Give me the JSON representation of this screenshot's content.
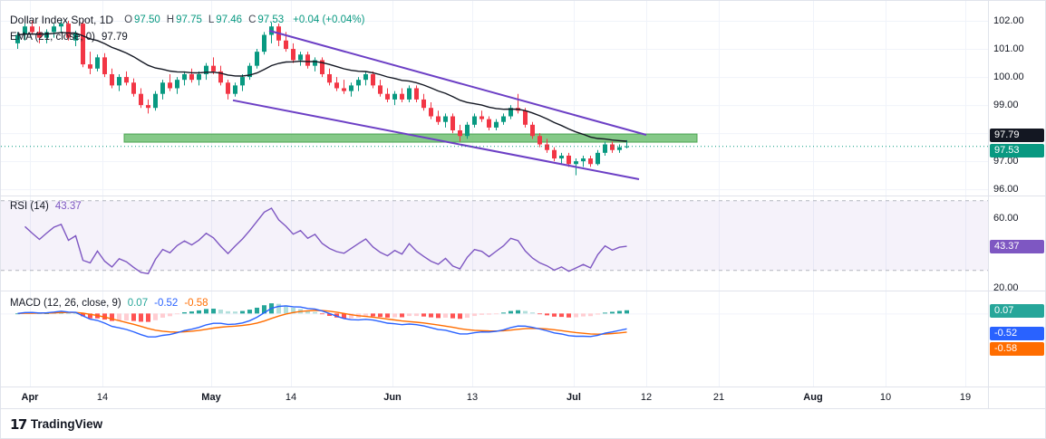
{
  "header": {
    "symbol_title": "Dollar Index Spot, 1D",
    "ohlc": {
      "o_label": "O",
      "o_value": "97.50",
      "h_label": "H",
      "h_value": "97.75",
      "l_label": "L",
      "l_value": "97.46",
      "c_label": "C",
      "c_value": "97.53",
      "change": "+0.04 (+0.04%)"
    },
    "ema": {
      "label": "EMA (21, close, 0)",
      "value": "97.79"
    }
  },
  "rsi_legend": {
    "label": "RSI (14)",
    "value": "43.37"
  },
  "macd_legend": {
    "label": "MACD (12, 26, close, 9)",
    "hist": "0.07",
    "macd": "-0.52",
    "signal": "-0.58"
  },
  "footer": {
    "mark": "17",
    "brand": "TradingView"
  },
  "colors": {
    "up": "#089981",
    "down": "#F23645",
    "ema": "#131722",
    "trendline": "#6C3FC5",
    "zone_fill": "#66BB6A",
    "zone_border": "#43A047",
    "rsi": "#7E57C2",
    "rsi_band_fill": "rgba(126,87,194,0.08)",
    "band_line": "#B2B5BE",
    "macd_line": "#2962FF",
    "macd_signal": "#FF6D00",
    "hist_up": "#26A69A",
    "hist_up_faded": "#B2DFDB",
    "hist_down": "#FF5252",
    "hist_down_faded": "#FFCDD2",
    "grid": "#F0F3FA",
    "border": "#E0E3EB",
    "axis_text": "#131722"
  },
  "chart_data": {
    "type": "candlestick",
    "title": "Dollar Index Spot",
    "interval": "1D",
    "price_axis_labels": [
      102,
      101,
      100,
      99,
      98,
      97,
      96
    ],
    "main": {
      "ylim": [
        95.78,
        102.71
      ],
      "ema_period": 21,
      "candles": [
        [
          101.2,
          101.6,
          101.0,
          101.5
        ],
        [
          101.5,
          101.9,
          101.3,
          101.8
        ],
        [
          101.8,
          102.0,
          101.5,
          101.6
        ],
        [
          101.6,
          101.8,
          101.2,
          101.4
        ],
        [
          101.4,
          101.7,
          101.2,
          101.6
        ],
        [
          101.6,
          101.9,
          101.4,
          101.8
        ],
        [
          101.8,
          102.05,
          101.6,
          101.9
        ],
        [
          101.9,
          102.0,
          101.3,
          101.4
        ],
        [
          101.3,
          101.65,
          101.1,
          101.55
        ],
        [
          101.9,
          102.0,
          100.35,
          100.45
        ],
        [
          100.45,
          100.9,
          100.1,
          100.3
        ],
        [
          100.3,
          100.8,
          100.2,
          100.7
        ],
        [
          100.7,
          100.85,
          100.0,
          100.1
        ],
        [
          100.1,
          100.3,
          99.6,
          99.7
        ],
        [
          99.7,
          100.1,
          99.5,
          100.0
        ],
        [
          100.0,
          100.2,
          99.7,
          99.8
        ],
        [
          99.8,
          99.95,
          99.3,
          99.4
        ],
        [
          99.4,
          99.6,
          98.9,
          99.0
        ],
        [
          99.0,
          99.2,
          98.7,
          98.9
        ],
        [
          98.9,
          99.5,
          98.8,
          99.4
        ],
        [
          99.4,
          99.9,
          99.2,
          99.8
        ],
        [
          99.8,
          100.1,
          99.5,
          99.6
        ],
        [
          99.6,
          100.0,
          99.4,
          99.9
        ],
        [
          99.9,
          100.2,
          99.7,
          100.1
        ],
        [
          100.1,
          100.3,
          99.8,
          99.9
        ],
        [
          99.9,
          100.2,
          99.7,
          100.1
        ],
        [
          100.1,
          100.5,
          99.9,
          100.4
        ],
        [
          100.4,
          100.7,
          100.1,
          100.2
        ],
        [
          100.2,
          100.4,
          99.7,
          99.8
        ],
        [
          99.8,
          99.9,
          99.2,
          99.4
        ],
        [
          99.4,
          99.8,
          99.3,
          99.7
        ],
        [
          99.7,
          100.1,
          99.5,
          100.0
        ],
        [
          100.0,
          100.5,
          99.9,
          100.4
        ],
        [
          100.4,
          101.0,
          100.3,
          100.9
        ],
        [
          100.9,
          101.6,
          100.8,
          101.5
        ],
        [
          101.5,
          101.95,
          101.2,
          101.8
        ],
        [
          101.8,
          101.9,
          101.1,
          101.3
        ],
        [
          101.3,
          101.6,
          100.9,
          101.0
        ],
        [
          101.0,
          101.2,
          100.5,
          100.6
        ],
        [
          100.6,
          100.9,
          100.4,
          100.8
        ],
        [
          100.8,
          100.9,
          100.3,
          100.4
        ],
        [
          100.4,
          100.7,
          100.2,
          100.6
        ],
        [
          100.6,
          100.7,
          100.0,
          100.1
        ],
        [
          100.1,
          100.3,
          99.7,
          99.8
        ],
        [
          99.8,
          100.0,
          99.5,
          99.6
        ],
        [
          99.6,
          99.9,
          99.4,
          99.5
        ],
        [
          99.5,
          99.8,
          99.3,
          99.7
        ],
        [
          99.7,
          100.0,
          99.5,
          99.9
        ],
        [
          99.9,
          100.2,
          99.7,
          100.1
        ],
        [
          100.1,
          100.2,
          99.6,
          99.7
        ],
        [
          99.7,
          99.9,
          99.3,
          99.4
        ],
        [
          99.4,
          99.6,
          99.1,
          99.2
        ],
        [
          99.2,
          99.5,
          99.0,
          99.4
        ],
        [
          99.4,
          99.6,
          99.1,
          99.2
        ],
        [
          99.2,
          99.7,
          99.1,
          99.6
        ],
        [
          99.6,
          99.7,
          99.1,
          99.2
        ],
        [
          99.2,
          99.4,
          98.8,
          98.9
        ],
        [
          98.9,
          99.1,
          98.5,
          98.6
        ],
        [
          98.6,
          98.8,
          98.3,
          98.4
        ],
        [
          98.4,
          98.7,
          98.2,
          98.6
        ],
        [
          98.6,
          98.7,
          98.0,
          98.1
        ],
        [
          98.1,
          98.3,
          97.7,
          97.9
        ],
        [
          97.9,
          98.4,
          97.8,
          98.3
        ],
        [
          98.3,
          98.7,
          98.2,
          98.6
        ],
        [
          98.6,
          98.8,
          98.4,
          98.5
        ],
        [
          98.5,
          98.6,
          98.1,
          98.2
        ],
        [
          98.2,
          98.5,
          98.1,
          98.4
        ],
        [
          98.4,
          98.7,
          98.3,
          98.6
        ],
        [
          98.6,
          99.0,
          98.5,
          98.9
        ],
        [
          98.9,
          99.4,
          98.7,
          98.8
        ],
        [
          98.8,
          98.9,
          98.2,
          98.3
        ],
        [
          98.3,
          98.4,
          97.8,
          97.9
        ],
        [
          97.9,
          98.0,
          97.5,
          97.6
        ],
        [
          97.6,
          97.8,
          97.3,
          97.4
        ],
        [
          97.4,
          97.5,
          97.0,
          97.1
        ],
        [
          97.1,
          97.3,
          96.9,
          97.2
        ],
        [
          97.2,
          97.3,
          96.8,
          96.9
        ],
        [
          96.9,
          97.1,
          96.5,
          97.0
        ],
        [
          97.0,
          97.2,
          96.8,
          97.1
        ],
        [
          97.1,
          97.2,
          96.8,
          96.9
        ],
        [
          96.9,
          97.4,
          96.85,
          97.3
        ],
        [
          97.3,
          97.7,
          97.2,
          97.6
        ],
        [
          97.6,
          97.7,
          97.3,
          97.4
        ],
        [
          97.4,
          97.6,
          97.3,
          97.5
        ],
        [
          97.5,
          97.75,
          97.46,
          97.53
        ]
      ]
    },
    "rsi": {
      "period": 14,
      "ylim": [
        18.4,
        72.5
      ],
      "bands": [
        70,
        30
      ],
      "axis_labels": [
        60,
        20
      ],
      "last": 43.37
    },
    "macd": {
      "fast": 12,
      "slow": 26,
      "smoothing": 9,
      "ylim": [
        -1.9,
        0.55
      ],
      "last": {
        "hist": 0.07,
        "macd": -0.52,
        "signal": -0.58
      }
    },
    "time_axis": [
      {
        "label": "Apr",
        "i": 2
      },
      {
        "label": "14",
        "i": 12
      },
      {
        "label": "May",
        "i": 27
      },
      {
        "label": "14",
        "i": 38
      },
      {
        "label": "Jun",
        "i": 52
      },
      {
        "label": "13",
        "i": 63
      },
      {
        "label": "Jul",
        "i": 77
      },
      {
        "label": "12",
        "i": 87
      },
      {
        "label": "21",
        "i": 97
      },
      {
        "label": "Aug",
        "i": 110
      },
      {
        "label": "10",
        "i": 120
      },
      {
        "label": "19",
        "i": 131
      }
    ],
    "drawings": {
      "zone": {
        "i1": 15,
        "i2": 94,
        "p_top": 97.97,
        "p_bottom": 97.68
      },
      "trendlines": [
        {
          "i1": 35,
          "p1": 101.65,
          "i2": 87,
          "p2": 97.94
        },
        {
          "i1": 30,
          "p1": 99.17,
          "i2": 86,
          "p2": 96.36
        }
      ]
    }
  }
}
